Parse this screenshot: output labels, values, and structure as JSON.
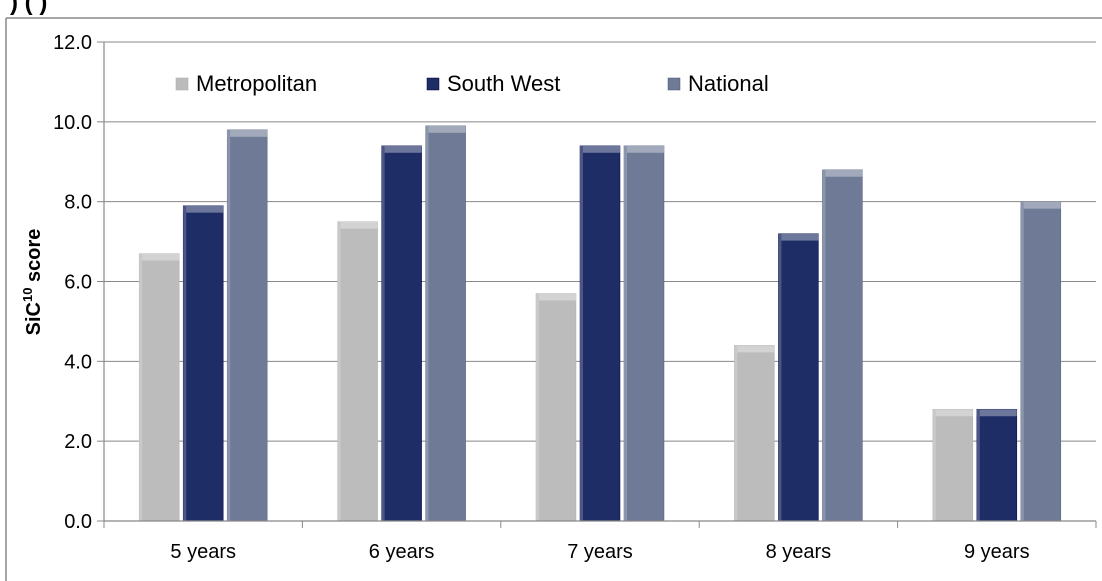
{
  "chart_data": {
    "type": "bar",
    "title": "",
    "partial_title": ") (  )",
    "categories": [
      "5 years",
      "6 years",
      "7 years",
      "8 years",
      "9 years"
    ],
    "series": [
      {
        "name": "Metropolitan",
        "values": [
          6.7,
          7.5,
          5.7,
          4.4,
          2.8
        ],
        "color": "#bcbcbc"
      },
      {
        "name": "South West",
        "values": [
          7.9,
          9.4,
          9.4,
          7.2,
          2.8
        ],
        "color": "#1f2d66"
      },
      {
        "name": "National",
        "values": [
          9.8,
          9.9,
          9.4,
          8.8,
          8.0
        ],
        "color": "#6e7a96"
      }
    ],
    "ylabel_prefix": "SiC",
    "ylabel_sup": "10",
    "ylabel_suffix": " score",
    "ylim": [
      0,
      12
    ],
    "yticks": [
      "0.0",
      "2.0",
      "4.0",
      "6.0",
      "8.0",
      "10.0",
      "12.0"
    ],
    "grid": true,
    "legend_position": "top"
  }
}
